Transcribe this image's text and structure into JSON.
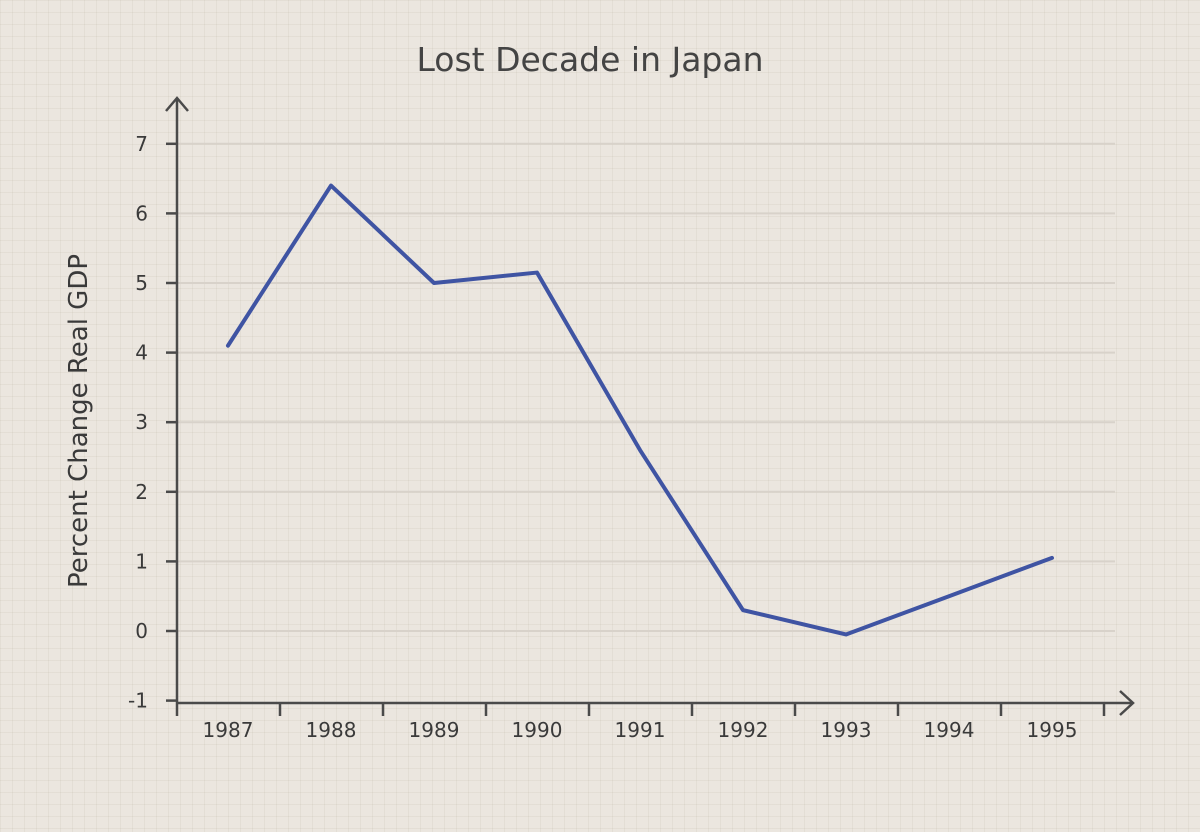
{
  "chart_data": {
    "type": "line",
    "title": "Lost Decade in Japan",
    "xlabel": "",
    "ylabel": "Percent Change Real GDP",
    "categories": [
      "1987",
      "1988",
      "1989",
      "1990",
      "1991",
      "1992",
      "1993",
      "1994",
      "1995"
    ],
    "yticks": [
      "-1",
      "0",
      "1",
      "2",
      "3",
      "4",
      "5",
      "6",
      "7"
    ],
    "ylim": [
      -1,
      7
    ],
    "grid": true,
    "series": [
      {
        "values": [
          4.1,
          6.4,
          5.0,
          5.15,
          2.6,
          0.3,
          -0.05,
          0.5,
          1.05
        ],
        "color": "#3f54a3"
      }
    ]
  }
}
